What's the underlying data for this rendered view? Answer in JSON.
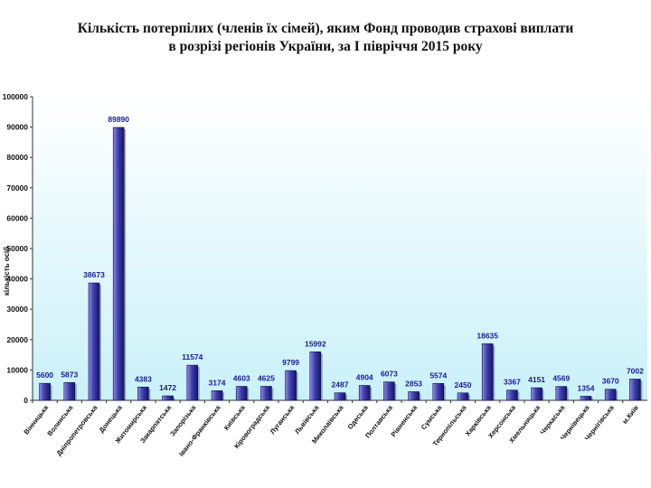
{
  "title": {
    "line1": "Кількість потерпілих (членів їх сімей), яким Фонд проводив страхові виплати",
    "line2": "в розрізі регіонів України,  за І півріччя 2015 року"
  },
  "colors": {
    "plot_bg_top": "#ffffff",
    "plot_bg_bottom": "#c9f1f9",
    "bar_fill": "#3f3fae",
    "bar_highlight": "#8d8de0",
    "bar_shadow": "#14146a",
    "label": "#1a1a9a"
  },
  "chart_data": {
    "type": "bar",
    "title": "Кількість потерпілих (членів їх сімей), яким Фонд проводив страхові виплати в розрізі регіонів України,  за І півріччя 2015 року",
    "ylabel": "кількість осіб",
    "xlabel": "",
    "ylim": [
      0,
      100000
    ],
    "yticks": [
      "0",
      "10000",
      "20000",
      "30000",
      "40000",
      "50000",
      "60000",
      "70000",
      "80000",
      "90000",
      "100000"
    ],
    "grid": false,
    "categories": [
      "Вінницька",
      "Волинська",
      "Дніпропетровська",
      "Донецька",
      "Житомирська",
      "Закарпатська",
      "Запорізька",
      "Івано-Франківська",
      "Київська",
      "Кіровоградська",
      "Луганська",
      "Львівська",
      "Миколаївська",
      "Одеська",
      "Полтавська",
      "Рівненська",
      "Сумська",
      "Тернопільська",
      "Харківська",
      "Херсонська",
      "Хмельницька",
      "Черкаська",
      "Чернівецька",
      "Чернігівська",
      "м.Київ"
    ],
    "values": [
      5600,
      5873,
      38673,
      89890,
      4383,
      1472,
      11574,
      3174,
      4603,
      4625,
      9799,
      15992,
      2487,
      4904,
      6073,
      2853,
      5574,
      2450,
      18635,
      3367,
      4151,
      4569,
      1354,
      3670,
      7002
    ],
    "data_labels": [
      "5600",
      "5873",
      "38673",
      "89890",
      "4383",
      "1472",
      "11574",
      "3174",
      "4603",
      "4625",
      "9799",
      "15992",
      "2487",
      "4904",
      "6073",
      "2853",
      "5574",
      "2450",
      "18635",
      "3367",
      "4151",
      "4569",
      "1354",
      "3670",
      "7002"
    ]
  }
}
